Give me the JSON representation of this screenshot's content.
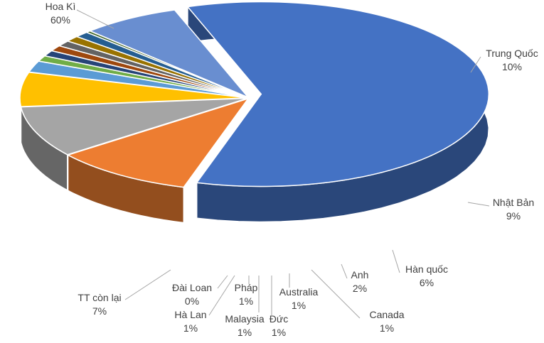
{
  "chart_data": {
    "type": "pie",
    "style": "3d-exploded",
    "title": "",
    "slices": [
      {
        "name": "Hoa Kì",
        "value": 60,
        "label": "60%",
        "color": "#4472C4"
      },
      {
        "name": "Trung Quốc",
        "value": 10,
        "label": "10%",
        "color": "#ED7D31"
      },
      {
        "name": "Nhật Bản",
        "value": 9,
        "label": "9%",
        "color": "#A5A5A5"
      },
      {
        "name": "Hàn quốc",
        "value": 6,
        "label": "6%",
        "color": "#FFC000"
      },
      {
        "name": "Anh",
        "value": 2,
        "label": "2%",
        "color": "#5B9BD5"
      },
      {
        "name": "Canada",
        "value": 1,
        "label": "1%",
        "color": "#70AD47"
      },
      {
        "name": "Australia",
        "value": 1,
        "label": "1%",
        "color": "#264478"
      },
      {
        "name": "Đức",
        "value": 1,
        "label": "1%",
        "color": "#9E480E"
      },
      {
        "name": "Malaysia",
        "value": 1,
        "label": "1%",
        "color": "#636363"
      },
      {
        "name": "Pháp",
        "value": 1,
        "label": "1%",
        "color": "#997300"
      },
      {
        "name": "Hà Lan",
        "value": 1,
        "label": "1%",
        "color": "#255E91"
      },
      {
        "name": "Đài Loan",
        "value": 0,
        "label": "0%",
        "color": "#43682B"
      },
      {
        "name": "TT còn lại",
        "value": 7,
        "label": "7%",
        "color": "#698ED0"
      }
    ]
  }
}
